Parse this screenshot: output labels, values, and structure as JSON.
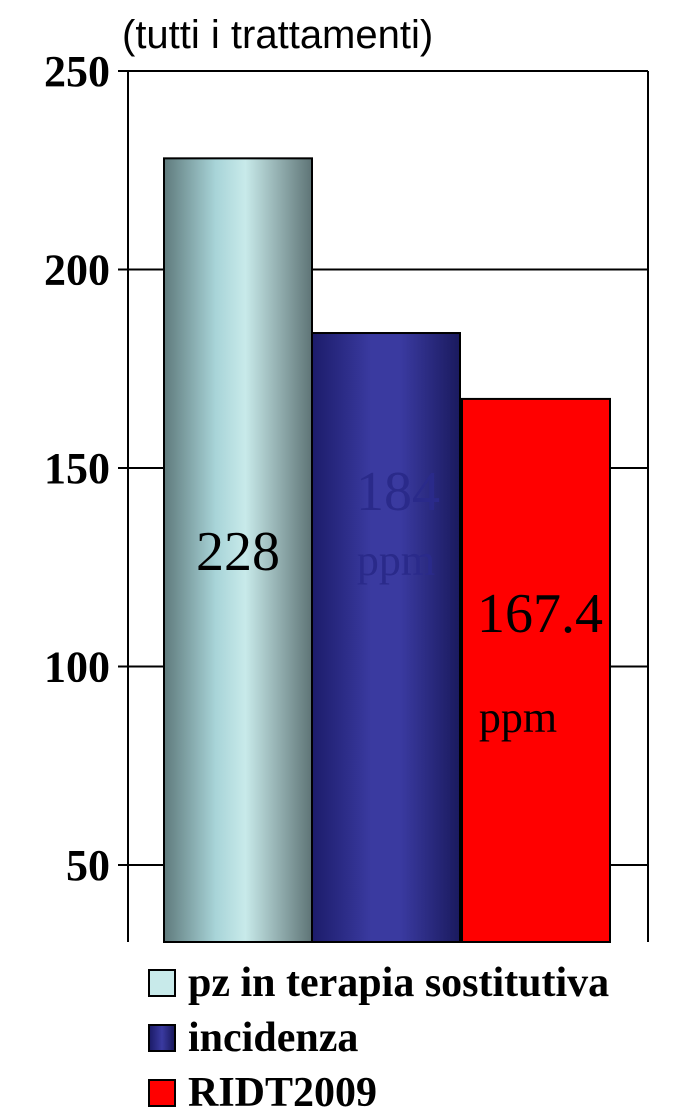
{
  "chart_data": {
    "type": "bar",
    "title": "(tutti i trattamenti)",
    "ylim": [
      30,
      250
    ],
    "yticks": [
      50,
      100,
      150,
      200,
      250
    ],
    "grid": true,
    "legend_position": "bottom",
    "series": [
      {
        "name": "pz in terapia sostitutiva",
        "value": 228,
        "label": "228",
        "unit": "",
        "color": "#a8d4d8"
      },
      {
        "name": "incidenza",
        "value": 184,
        "label": "184",
        "unit": "ppm",
        "color": "#2e2e8e"
      },
      {
        "name": "RIDT2009",
        "value": 167.4,
        "label": "167.4",
        "unit": "ppm",
        "color": "#ff0000"
      }
    ]
  }
}
